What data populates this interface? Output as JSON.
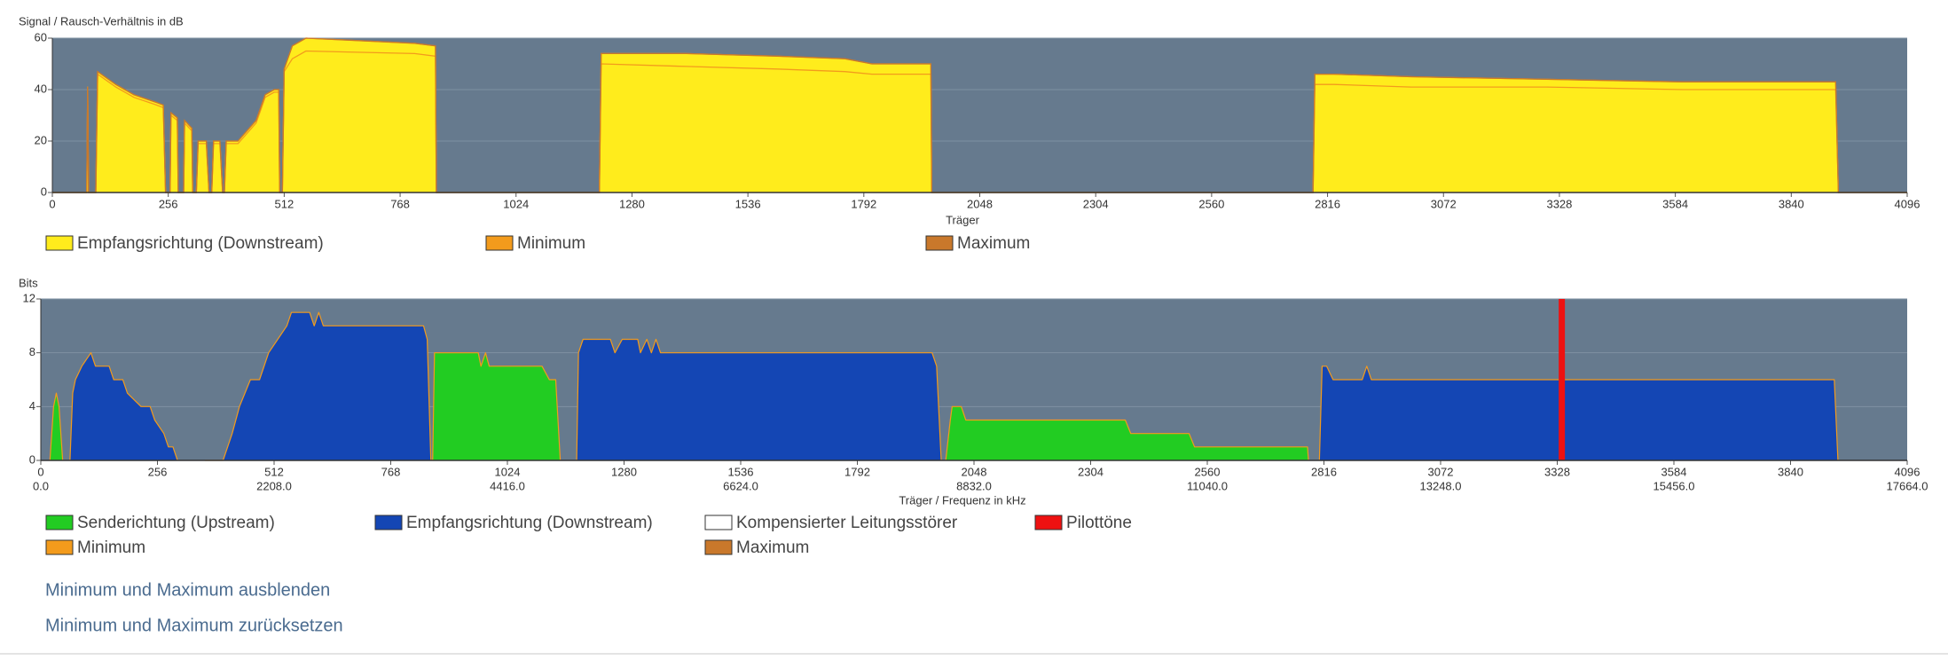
{
  "chart_data": [
    {
      "type": "area",
      "title": "Signal / Rausch-Verhältnis in dB",
      "xlabel": "Träger",
      "x": [
        0,
        76,
        78,
        80,
        96,
        100,
        140,
        180,
        230,
        245,
        250,
        260,
        262,
        276,
        278,
        290,
        292,
        308,
        310,
        318,
        322,
        340,
        346,
        352,
        356,
        370,
        376,
        380,
        384,
        410,
        450,
        470,
        490,
        500,
        502,
        508,
        512,
        530,
        560,
        800,
        846,
        848,
        1208,
        1212,
        1400,
        1600,
        1750,
        1810,
        1940,
        1942,
        2784,
        2788,
        2830,
        3000,
        3300,
        3600,
        3938,
        3944,
        4096
      ],
      "xlim": [
        0,
        4096
      ],
      "xticks": [
        0,
        256,
        512,
        768,
        1024,
        1280,
        1536,
        1792,
        2048,
        2304,
        2560,
        2816,
        3072,
        3328,
        3584,
        3840,
        4096
      ],
      "ylim": [
        0,
        60
      ],
      "yticks": [
        0,
        20,
        40,
        60
      ],
      "grid": true,
      "series": [
        {
          "name": "Empfangsrichtung (Downstream)",
          "color": "#ffec1c",
          "style": "area",
          "values": [
            0,
            0,
            41,
            0,
            0,
            47,
            42,
            38,
            35,
            34,
            0,
            0,
            31,
            29,
            0,
            0,
            28,
            25,
            0,
            0,
            20,
            20,
            0,
            0,
            20,
            20,
            0,
            0,
            20,
            20,
            28,
            38,
            40,
            40,
            0,
            0,
            48,
            57,
            60,
            58,
            57,
            0,
            0,
            54,
            54,
            53,
            52,
            50,
            50,
            0,
            0,
            46,
            46,
            45,
            44,
            43,
            43,
            0,
            0
          ]
        },
        {
          "name": "Minimum",
          "color": "#f39b1c",
          "style": "line",
          "values": [
            0,
            0,
            41,
            0,
            0,
            46,
            41,
            37,
            34,
            33,
            0,
            0,
            30,
            28,
            0,
            0,
            27,
            24,
            0,
            0,
            19,
            19,
            0,
            0,
            19,
            19,
            0,
            0,
            19,
            19,
            27,
            37,
            39,
            39,
            0,
            0,
            47,
            52,
            55,
            54,
            53,
            0,
            0,
            50,
            49,
            48,
            47,
            46,
            46,
            0,
            0,
            42,
            42,
            41,
            41,
            40,
            40,
            0,
            0
          ]
        },
        {
          "name": "Maximum",
          "color": "#c9782b",
          "style": "line",
          "values": [
            0,
            0,
            41,
            0,
            0,
            47,
            42,
            38,
            35,
            34,
            0,
            0,
            31,
            29,
            0,
            0,
            28,
            25,
            0,
            0,
            20,
            20,
            0,
            0,
            20,
            20,
            0,
            0,
            20,
            20,
            28,
            38,
            40,
            40,
            0,
            0,
            48,
            57,
            60,
            58,
            57,
            0,
            0,
            54,
            54,
            53,
            52,
            50,
            50,
            0,
            0,
            46,
            46,
            45,
            44,
            43,
            43,
            0,
            0
          ]
        }
      ]
    },
    {
      "type": "area",
      "title": "Bits",
      "xlabel": "Träger / Frequenz in kHz",
      "xlim": [
        0,
        4096
      ],
      "xticks": [
        0,
        256,
        512,
        768,
        1024,
        1280,
        1536,
        1792,
        2048,
        2304,
        2560,
        2816,
        3072,
        3328,
        3584,
        3840,
        4096
      ],
      "x2lim": [
        0,
        17664
      ],
      "x2ticks": [
        {
          "value": 0,
          "label": "0.0"
        },
        {
          "value": 2208,
          "label": "2208.0"
        },
        {
          "value": 4416,
          "label": "4416.0"
        },
        {
          "value": 6624,
          "label": "6624.0"
        },
        {
          "value": 8832,
          "label": "8832.0"
        },
        {
          "value": 11040,
          "label": "11040.0"
        },
        {
          "value": 13248,
          "label": "13248.0"
        },
        {
          "value": 15456,
          "label": "15456.0"
        },
        {
          "value": 17664,
          "label": "17664.0"
        }
      ],
      "ylim": [
        0,
        12
      ],
      "yticks": [
        0,
        4,
        8,
        12
      ],
      "grid": true,
      "series": [
        {
          "name": "Senderichtung (Upstream)",
          "color": "#22cc22",
          "style": "area",
          "x": [
            20,
            28,
            34,
            40,
            48,
            400,
            860,
            864,
            960,
            966,
            976,
            984,
            1100,
            1116,
            1130,
            1140,
            1500,
            1986,
            1996,
            2000,
            2020,
            2030,
            2380,
            2392,
            2520,
            2532,
            2780,
            2782
          ],
          "values": [
            0,
            4,
            5,
            4,
            0,
            null,
            0,
            8,
            8,
            7,
            8,
            7,
            7,
            6,
            6,
            0,
            null,
            0,
            3,
            4,
            4,
            3,
            3,
            2,
            2,
            1,
            1,
            0
          ]
        },
        {
          "name": "Empfangsrichtung (Downstream)",
          "color": "#1446b4",
          "style": "area",
          "x": [
            64,
            70,
            76,
            90,
            110,
            120,
            150,
            160,
            180,
            190,
            220,
            240,
            250,
            270,
            280,
            290,
            300,
            330,
            360,
            400,
            420,
            436,
            460,
            480,
            500,
            540,
            550,
            590,
            600,
            610,
            620,
            840,
            848,
            856,
            1000,
            1176,
            1180,
            1190,
            1250,
            1260,
            1276,
            1310,
            1316,
            1330,
            1340,
            1350,
            1360,
            1956,
            1966,
            1976,
            2400,
            2806,
            2812,
            2822,
            2836,
            2900,
            2910,
            2920,
            3936,
            3944
          ],
          "values": [
            0,
            5,
            6,
            7,
            8,
            7,
            7,
            6,
            6,
            5,
            4,
            4,
            3,
            2,
            1,
            1,
            0,
            null,
            0,
            0,
            2,
            4,
            6,
            6,
            8,
            10,
            11,
            11,
            10,
            11,
            10,
            10,
            9,
            0,
            null,
            0,
            8,
            9,
            9,
            8,
            9,
            9,
            8,
            9,
            8,
            9,
            8,
            8,
            7,
            0,
            null,
            0,
            7,
            7,
            6,
            6,
            7,
            6,
            6,
            0
          ]
        },
        {
          "name": "Kompensierter Leitungsstörer",
          "color": "#ffffff"
        },
        {
          "name": "Pilottöne",
          "color": "#ee1111",
          "style": "bar",
          "x": [
            3338
          ],
          "values": [
            12
          ]
        },
        {
          "name": "Minimum",
          "color": "#f39b1c"
        },
        {
          "name": "Maximum",
          "color": "#c9782b"
        }
      ]
    }
  ],
  "links": [
    "Minimum und Maximum ausblenden",
    "Minimum und Maximum zurücksetzen"
  ]
}
